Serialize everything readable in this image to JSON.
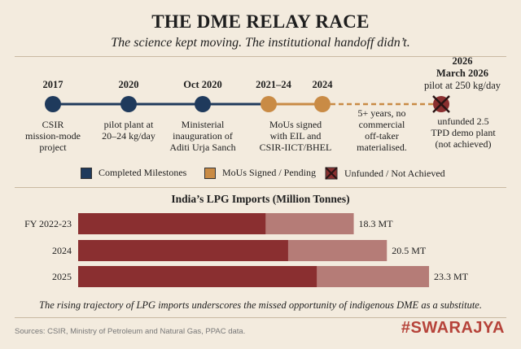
{
  "header": {
    "title": "THE DME RELAY RACE",
    "subtitle": "The science kept moving. The institutional handoff didn’t."
  },
  "colors": {
    "completed": "#1f3a5c",
    "pending": "#c98b45",
    "unfunded": "#8a2f2f",
    "bar_dark": "#8a2f30",
    "bar_light": "#b57c77",
    "background": "#f3ebde"
  },
  "timeline": {
    "milestones": [
      {
        "label": "2017",
        "status": "completed",
        "description": [
          "CSIR",
          "mission-mode",
          "project"
        ]
      },
      {
        "label": "2020",
        "status": "completed",
        "description": [
          "pilot plant at",
          "20–24 kg/day"
        ]
      },
      {
        "label": "Oct 2020",
        "status": "completed",
        "description": [
          "Ministerial",
          "inauguration of",
          "Aditi Urja Sanch"
        ]
      },
      {
        "label": "2021–24",
        "status": "pending",
        "description": [
          "MoUs signed",
          "with EIL and",
          "CSIR-IICT/BHEL"
        ]
      },
      {
        "label": "2024",
        "status": "pending",
        "description": []
      },
      {
        "label": "2026",
        "status": "unfunded",
        "description": [
          "unfunded 2.5",
          "TPD demo plant",
          "(not achieved)"
        ]
      }
    ],
    "gap_note": [
      "5+ years, no",
      "commercial",
      "off-taker",
      "materialised."
    ],
    "last_date_lines": [
      "March 2026",
      "pilot at 250 kg/day"
    ]
  },
  "legend": [
    {
      "label": "Completed Milestones",
      "icon": "square-navy"
    },
    {
      "label": "MoUs Signed / Pending",
      "icon": "square-ochre"
    },
    {
      "label": "Unfunded / Not Achieved",
      "icon": "square-crossed"
    }
  ],
  "chart_data": {
    "type": "bar",
    "orientation": "horizontal",
    "title": "India’s LPG Imports (Million Tonnes)",
    "categories": [
      "FY 2022-23",
      "2024",
      "2025"
    ],
    "values": [
      18.3,
      20.5,
      23.3
    ],
    "value_labels": [
      "18.3 MT",
      "20.5 MT",
      "23.3 MT"
    ],
    "xlim": [
      0,
      26
    ]
  },
  "footnote": "The rising trajectory of LPG imports underscores the missed opportunity of indigenous DME as a substitute.",
  "sources": "Sources: CSIR, Ministry of Petroleum and Natural Gas, PPAC data.",
  "brand": "#SWARAJYA"
}
